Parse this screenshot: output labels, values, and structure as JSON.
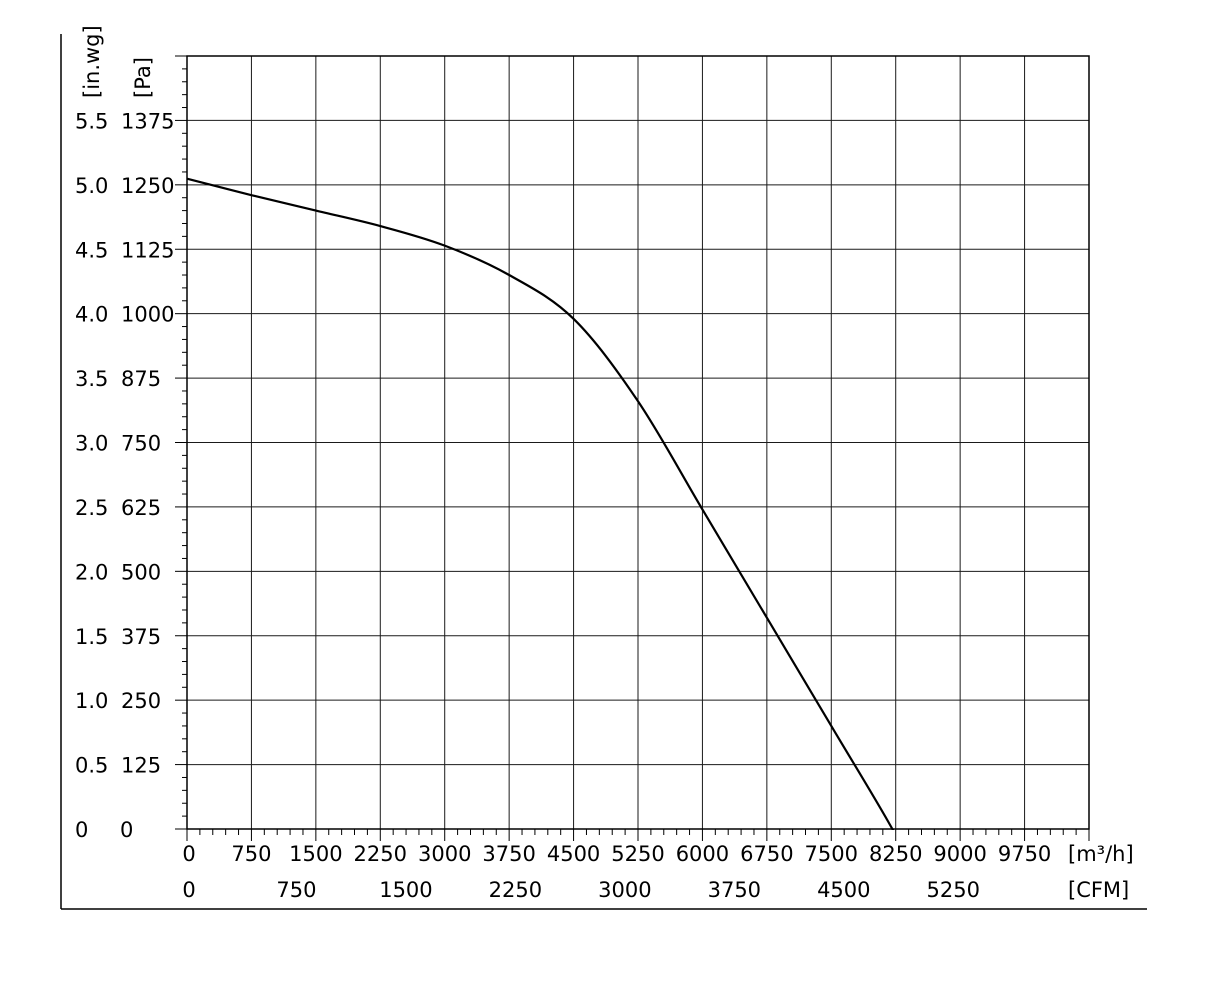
{
  "chart_data": {
    "type": "line",
    "x_unit_primary": "[m³/h]",
    "x_unit_secondary": "[CFM]",
    "y_unit_left": "[in.wg]",
    "y_unit_right": "[Pa]",
    "x_ticks_m3h": [
      "0",
      "750",
      "1500",
      "2250",
      "3000",
      "3750",
      "4500",
      "5250",
      "6000",
      "6750",
      "7500",
      "8250",
      "9000",
      "9750"
    ],
    "x_ticks_cfm": [
      "0",
      "750",
      "1500",
      "2250",
      "3000",
      "3750",
      "4500",
      "5250"
    ],
    "y_ticks_inwg": [
      "0",
      "0.5",
      "1.0",
      "1.5",
      "2.0",
      "2.5",
      "3.0",
      "3.5",
      "4.0",
      "4.5",
      "5.0",
      "5.5"
    ],
    "y_ticks_pa": [
      "0",
      "125",
      "250",
      "375",
      "500",
      "625",
      "750",
      "875",
      "1000",
      "1125",
      "1250",
      "1375"
    ],
    "xlim": [
      0,
      10500
    ],
    "ylim": [
      0,
      1500
    ],
    "grid": true,
    "series": [
      {
        "x": [
          0,
          750,
          1500,
          2250,
          3000,
          3750,
          4500,
          5250,
          6000,
          6750,
          7500,
          8250,
          8400
        ],
        "y": [
          1262,
          1230,
          1200,
          1170,
          1132,
          1075,
          990,
          830,
          620,
          410,
          200,
          -12,
          -85
        ]
      }
    ]
  }
}
